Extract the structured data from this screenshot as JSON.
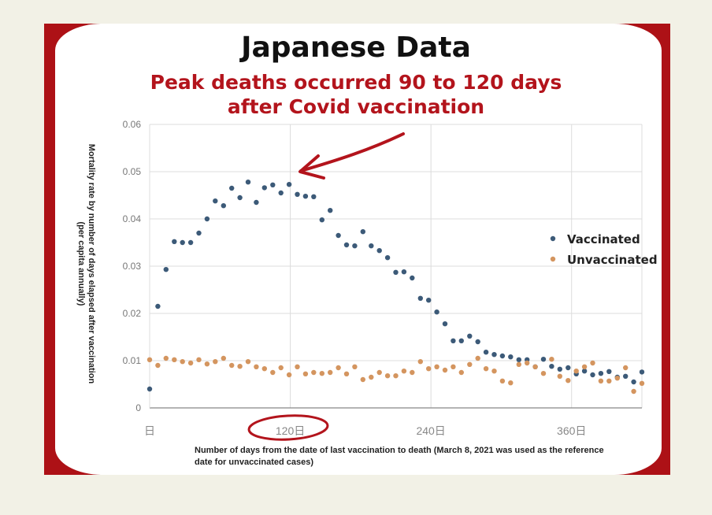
{
  "title": "Japanese Data",
  "subtitle_line1": "Peak deaths occurred 90 to 120 days",
  "subtitle_line2": "after Covid vaccination",
  "colors": {
    "vaccinated": "#3c5a78",
    "unvaccinated": "#d4955f",
    "accent": "#b3141c",
    "frame": "#ad1116"
  },
  "chart_data": {
    "type": "scatter",
    "ylabel_line1": "Mortality rate by number of days elapsed after vaccination",
    "ylabel_line2": "(per capita annually)",
    "xlabel": "Number of days from the date of last vaccination to death (March 8, 2021 was used as the reference date for unvaccinated cases)",
    "ylim": [
      0,
      0.06
    ],
    "xlim": [
      0,
      420
    ],
    "y_ticks": [
      "0",
      "0.01",
      "0.02",
      "0.03",
      "0.04",
      "0.05",
      "0.06"
    ],
    "x_ticks": [
      {
        "value": 0,
        "label": "日"
      },
      {
        "value": 120,
        "label": "120日"
      },
      {
        "value": 240,
        "label": "240日"
      },
      {
        "value": 360,
        "label": "360日"
      }
    ],
    "grid": true,
    "legend_position": "right",
    "annotations": [
      "arrow pointing to peak near day 120",
      "circle around 120日 tick"
    ],
    "series": [
      {
        "name": "Vaccinated",
        "x": [
          0,
          7,
          14,
          21,
          28,
          35,
          42,
          49,
          56,
          63,
          70,
          77,
          84,
          91,
          98,
          105,
          112,
          119,
          126,
          133,
          140,
          147,
          154,
          161,
          168,
          175,
          182,
          189,
          196,
          203,
          210,
          217,
          224,
          231,
          238,
          245,
          252,
          259,
          266,
          273,
          280,
          287,
          294,
          301,
          308,
          315,
          322,
          329,
          336,
          343,
          350,
          357,
          364,
          371,
          378,
          385,
          392,
          399,
          406,
          413,
          420
        ],
        "y": [
          0.004,
          0.0215,
          0.0293,
          0.0352,
          0.035,
          0.035,
          0.037,
          0.04,
          0.0438,
          0.0428,
          0.0465,
          0.0445,
          0.0478,
          0.0435,
          0.0466,
          0.0472,
          0.0455,
          0.0473,
          0.0452,
          0.0448,
          0.0447,
          0.0398,
          0.0418,
          0.0365,
          0.0345,
          0.0343,
          0.0373,
          0.0343,
          0.0333,
          0.0318,
          0.0287,
          0.0288,
          0.0275,
          0.0232,
          0.0228,
          0.0203,
          0.0178,
          0.0142,
          0.0142,
          0.0152,
          0.014,
          0.0118,
          0.0113,
          0.011,
          0.0108,
          0.0102,
          0.0102,
          0.0087,
          0.0103,
          0.0088,
          0.0082,
          0.0085,
          0.0072,
          0.0078,
          0.007,
          0.0073,
          0.0077,
          0.0065,
          0.0067,
          0.0055,
          0.0076
        ]
      },
      {
        "name": "Unvaccinated",
        "x": [
          0,
          7,
          14,
          21,
          28,
          35,
          42,
          49,
          56,
          63,
          70,
          77,
          84,
          91,
          98,
          105,
          112,
          119,
          126,
          133,
          140,
          147,
          154,
          161,
          168,
          175,
          182,
          189,
          196,
          203,
          210,
          217,
          224,
          231,
          238,
          245,
          252,
          259,
          266,
          273,
          280,
          287,
          294,
          301,
          308,
          315,
          322,
          329,
          336,
          343,
          350,
          357,
          364,
          371,
          378,
          385,
          392,
          399,
          406,
          413,
          420
        ],
        "y": [
          0.0102,
          0.009,
          0.0105,
          0.0102,
          0.0098,
          0.0095,
          0.0102,
          0.0093,
          0.0098,
          0.0105,
          0.009,
          0.0088,
          0.0098,
          0.0087,
          0.0083,
          0.0075,
          0.0085,
          0.007,
          0.0087,
          0.0072,
          0.0075,
          0.0073,
          0.0075,
          0.0085,
          0.0072,
          0.0087,
          0.006,
          0.0065,
          0.0075,
          0.0068,
          0.0068,
          0.0078,
          0.0075,
          0.0098,
          0.0083,
          0.0087,
          0.008,
          0.0087,
          0.0075,
          0.0092,
          0.0105,
          0.0083,
          0.0078,
          0.0057,
          0.0053,
          0.0092,
          0.0095,
          0.0087,
          0.0073,
          0.0103,
          0.0067,
          0.0058,
          0.0078,
          0.0087,
          0.0095,
          0.0057,
          0.0057,
          0.0063,
          0.0085,
          0.0035,
          0.0052
        ]
      }
    ]
  }
}
